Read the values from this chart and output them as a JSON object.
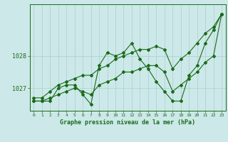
{
  "xlabel": "Graphe pression niveau de la mer (hPa)",
  "background_color": "#cce8e8",
  "grid_color": "#aacfcf",
  "line_color": "#1a6b1a",
  "x": [
    0,
    1,
    2,
    3,
    4,
    5,
    6,
    7,
    8,
    9,
    10,
    11,
    12,
    13,
    14,
    15,
    16,
    17,
    18,
    19,
    20,
    21,
    22,
    23
  ],
  "y_main": [
    1026.6,
    1026.6,
    1026.6,
    1027.0,
    1027.1,
    1027.1,
    1026.8,
    1026.5,
    1027.7,
    1028.1,
    1028.0,
    1028.1,
    1028.4,
    1027.9,
    1027.6,
    1027.2,
    1026.9,
    1026.6,
    1026.6,
    1027.4,
    1027.7,
    1028.4,
    1028.8,
    1029.3
  ],
  "y_upper": [
    1026.7,
    1026.7,
    1026.9,
    1027.1,
    1027.2,
    1027.3,
    1027.4,
    1027.4,
    1027.6,
    1027.7,
    1027.9,
    1028.0,
    1028.1,
    1028.2,
    1028.2,
    1028.3,
    1028.2,
    1027.6,
    1027.9,
    1028.1,
    1028.4,
    1028.7,
    1028.9,
    1029.3
  ],
  "y_lower": [
    1026.6,
    1026.6,
    1026.7,
    1026.8,
    1026.9,
    1027.0,
    1026.9,
    1026.8,
    1027.1,
    1027.2,
    1027.3,
    1027.5,
    1027.5,
    1027.6,
    1027.7,
    1027.7,
    1027.5,
    1026.9,
    1027.1,
    1027.3,
    1027.5,
    1027.8,
    1028.0,
    1029.3
  ],
  "yticks": [
    1027,
    1028
  ],
  "ylim": [
    1026.3,
    1029.6
  ],
  "xlim": [
    -0.5,
    23.5
  ],
  "figwidth": 3.2,
  "figheight": 2.0,
  "dpi": 100
}
